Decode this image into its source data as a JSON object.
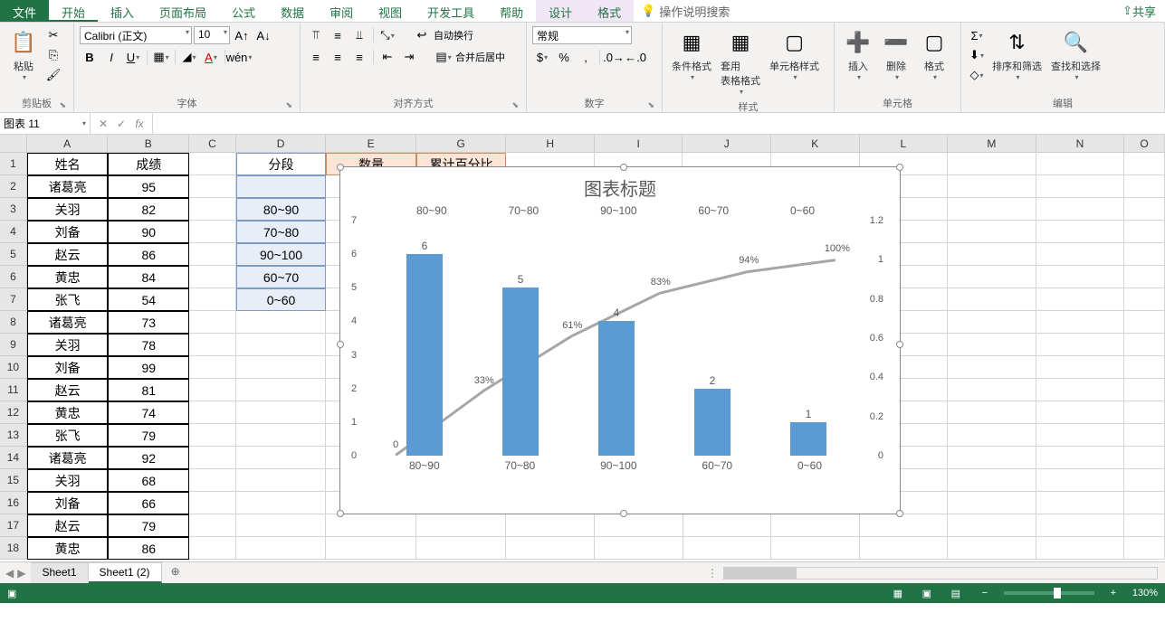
{
  "menubar": {
    "tabs": [
      "文件",
      "开始",
      "插入",
      "页面布局",
      "公式",
      "数据",
      "审阅",
      "视图",
      "开发工具",
      "帮助",
      "设计",
      "格式"
    ],
    "active": "开始",
    "contextual": [
      "设计",
      "格式"
    ],
    "tellme": "操作说明搜索",
    "share": "共享"
  },
  "ribbon": {
    "groups": {
      "clipboard": {
        "label": "剪贴板",
        "paste": "粘贴"
      },
      "font": {
        "label": "字体",
        "name": "Calibri (正文)",
        "size": "10"
      },
      "align": {
        "label": "对齐方式",
        "wrap": "自动换行",
        "merge": "合并后居中"
      },
      "number": {
        "label": "数字",
        "format": "常规"
      },
      "styles": {
        "label": "样式",
        "cond": "条件格式",
        "table": "套用\n表格格式",
        "cell": "单元格样式"
      },
      "cells": {
        "label": "单元格",
        "insert": "插入",
        "delete": "删除",
        "format": "格式"
      },
      "editing": {
        "label": "编辑",
        "sort": "排序和筛选",
        "find": "查找和选择"
      }
    }
  },
  "namebox": "图表 11",
  "columns": [
    "A",
    "B",
    "C",
    "D",
    "E",
    "G",
    "H",
    "I",
    "J",
    "K",
    "L",
    "M",
    "N",
    "O"
  ],
  "colW": {
    "A": 90,
    "B": 90,
    "C": 52,
    "D": 100,
    "E": 100,
    "G": 100,
    "H": 98,
    "I": 98,
    "J": 98,
    "K": 98,
    "L": 98,
    "M": 98,
    "N": 98,
    "O": 45
  },
  "spreadsheet": {
    "headers": {
      "A": "姓名",
      "B": "成绩",
      "D": "分段",
      "E": "数量",
      "G": "累计百分比"
    },
    "dataA": [
      "诸葛亮",
      "关羽",
      "刘备",
      "赵云",
      "黄忠",
      "张飞",
      "诸葛亮",
      "关羽",
      "刘备",
      "赵云",
      "黄忠",
      "张飞",
      "诸葛亮",
      "关羽",
      "刘备",
      "赵云",
      "黄忠"
    ],
    "dataB": [
      95,
      82,
      90,
      86,
      84,
      54,
      73,
      78,
      99,
      81,
      74,
      79,
      92,
      68,
      66,
      79,
      86
    ],
    "dataD": [
      "",
      "80~90",
      "70~80",
      "90~100",
      "60~70",
      "0~60"
    ],
    "g2": 0
  },
  "chart": {
    "title": "图表标题",
    "categories": [
      "80~90",
      "70~80",
      "90~100",
      "60~70",
      "0~60"
    ],
    "bars": [
      6,
      5,
      4,
      2,
      1
    ],
    "bar_color": "#5b9bd5",
    "line_pct": [
      0,
      33,
      61,
      83,
      94,
      100
    ],
    "line_labels": [
      "0",
      "33%",
      "61%",
      "83%",
      "94%",
      "100%"
    ],
    "yl_max": 7,
    "yl_ticks": [
      0,
      1,
      2,
      3,
      4,
      5,
      6,
      7
    ],
    "yr_ticks": [
      "0",
      "0.2",
      "0.4",
      "0.6",
      "0.8",
      "1",
      "1.2"
    ],
    "line_color": "#a6a6a6"
  },
  "sheets": {
    "tabs": [
      "Sheet1",
      "Sheet1 (2)"
    ],
    "active": 1
  },
  "status": {
    "zoom": "130%"
  }
}
